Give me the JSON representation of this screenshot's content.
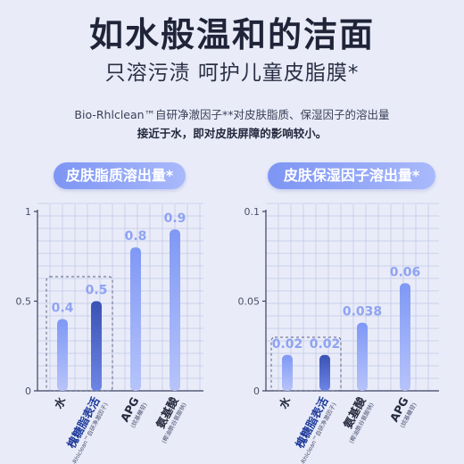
{
  "header": {
    "title": "如水般温和的洁面",
    "subtitle": "只溶污渍  呵护儿童皮脂膜*",
    "description_line1": "Bio-Rhlclean™自研净澈因子**对皮肤脂质、保湿因子的溶出量",
    "description_line2": "接近于水，即对皮肤屏障的影响较小。"
  },
  "colors": {
    "bar_light": "#6f8af0",
    "bar_highlight": "#3d55b8",
    "value_label": "#8fa3f2",
    "axis": "#3c4060",
    "grid": "#c9cfec"
  },
  "chart_data": [
    {
      "type": "bar",
      "title": "皮肤脂质溶出量*",
      "categories": [
        "水",
        "槐糖脂表活",
        "APG",
        "氨基酸"
      ],
      "category_notes": [
        "",
        "(Bio-Rhlclean™自研净澈因子)",
        "(烷基糖苷)",
        "(椰油酰谷氨酸钠)"
      ],
      "values": [
        0.4,
        0.5,
        0.8,
        0.9
      ],
      "value_labels": [
        "0.4",
        "0.5",
        "0.8",
        "0.9"
      ],
      "highlight_index": 1,
      "ylim": [
        0,
        1
      ],
      "yticks": [
        0,
        0.5,
        1
      ],
      "ytick_labels": [
        "0",
        "0.5",
        "1"
      ],
      "xlabel": "",
      "ylabel": "",
      "grid": true
    },
    {
      "type": "bar",
      "title": "皮肤保湿因子溶出量*",
      "categories": [
        "水",
        "槐糖脂表活",
        "氨基酸",
        "APG"
      ],
      "category_notes": [
        "",
        "(Bio-Rhlclean™自研净澈因子)",
        "(椰油酰谷氨酸钠)",
        "(烷基糖苷)"
      ],
      "values": [
        0.02,
        0.02,
        0.038,
        0.06
      ],
      "value_labels": [
        "0.02",
        "0.02",
        "0.038",
        "0.06"
      ],
      "highlight_index": 1,
      "ylim": [
        0,
        0.1
      ],
      "yticks": [
        0,
        0.05,
        0.1
      ],
      "ytick_labels": [
        "0",
        "0.05",
        "0.1"
      ],
      "xlabel": "",
      "ylabel": "",
      "grid": true
    }
  ]
}
